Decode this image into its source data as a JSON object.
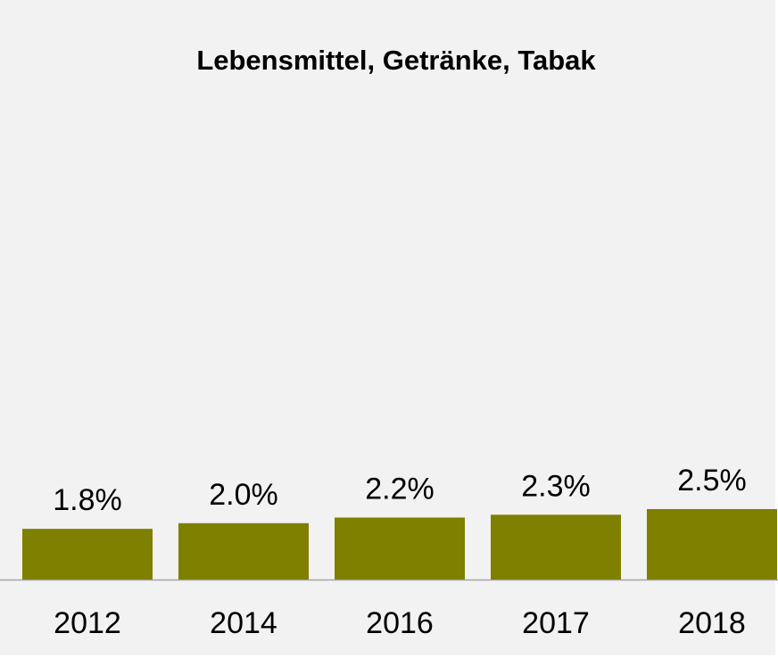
{
  "chart_data": {
    "type": "bar",
    "title": "Lebensmittel, Getränke, Tabak",
    "categories": [
      "2012",
      "2014",
      "2016",
      "2017",
      "2018"
    ],
    "values": [
      1.8,
      2.0,
      2.2,
      2.3,
      2.5
    ],
    "value_labels": [
      "1.8%",
      "2.0%",
      "2.2%",
      "2.3%",
      "2.5%"
    ],
    "color": "#7f7f00"
  }
}
